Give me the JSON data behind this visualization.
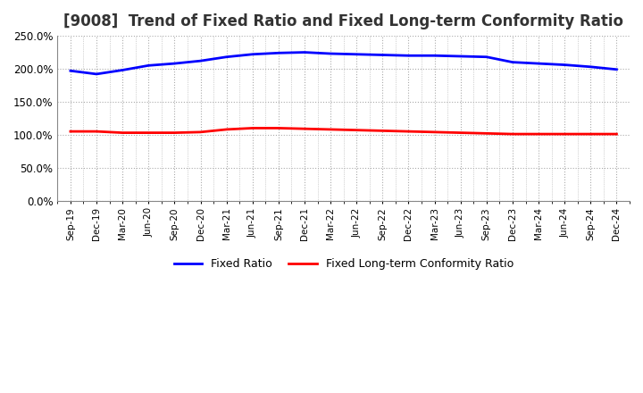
{
  "title": "[9008]  Trend of Fixed Ratio and Fixed Long-term Conformity Ratio",
  "x_labels": [
    "Sep-19",
    "Dec-19",
    "Mar-20",
    "Jun-20",
    "Sep-20",
    "Dec-20",
    "Mar-21",
    "Jun-21",
    "Sep-21",
    "Dec-21",
    "Mar-22",
    "Jun-22",
    "Sep-22",
    "Dec-22",
    "Mar-23",
    "Jun-23",
    "Sep-23",
    "Dec-23",
    "Mar-24",
    "Jun-24",
    "Sep-24",
    "Dec-24"
  ],
  "fixed_ratio": [
    197,
    192,
    198,
    205,
    208,
    212,
    218,
    222,
    224,
    225,
    223,
    222,
    221,
    220,
    220,
    219,
    218,
    210,
    208,
    206,
    203,
    199
  ],
  "fixed_lt_ratio": [
    105,
    105,
    103,
    103,
    103,
    104,
    108,
    110,
    110,
    109,
    108,
    107,
    106,
    105,
    104,
    103,
    102,
    101,
    101,
    101,
    101,
    101
  ],
  "fixed_ratio_color": "#0000ff",
  "fixed_lt_ratio_color": "#ff0000",
  "ylim": [
    0,
    250
  ],
  "yticks": [
    0,
    50,
    100,
    150,
    200,
    250
  ],
  "background_color": "#ffffff",
  "grid_color": "#aaaaaa",
  "title_fontsize": 12,
  "legend_labels": [
    "Fixed Ratio",
    "Fixed Long-term Conformity Ratio"
  ]
}
